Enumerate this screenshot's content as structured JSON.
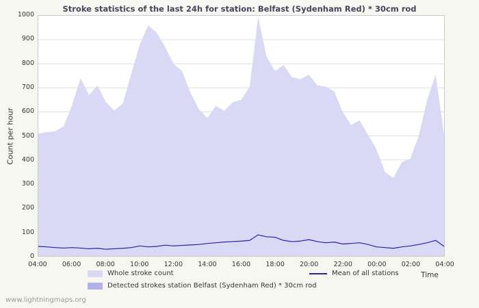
{
  "footer": {
    "watermark": "www.lightningmaps.org"
  },
  "chart_data": {
    "type": "area",
    "title": "Stroke statistics of the last 24h for station: Belfast (Sydenham Red) * 30cm rod",
    "xlabel": "Time",
    "ylabel": "Count per hour",
    "ylim": [
      0,
      1000
    ],
    "yticks": [
      0,
      100,
      200,
      300,
      400,
      500,
      600,
      700,
      800,
      900,
      1000
    ],
    "xticks": [
      "04:00",
      "06:00",
      "08:00",
      "10:00",
      "12:00",
      "14:00",
      "16:00",
      "18:00",
      "20:00",
      "22:00",
      "00:00",
      "02:00",
      "04:00"
    ],
    "x_start": "04:00",
    "x_interval_minutes": 30,
    "grid": "horizontal",
    "legend_position": "bottom",
    "colors": {
      "whole": "#d9d9f6",
      "detected": "#b2b2ea",
      "mean": "#2222aa",
      "grid": "#dddddd"
    },
    "series": [
      {
        "name": "Whole stroke count",
        "slug": "whole-stroke-count",
        "kind": "area",
        "color": "#d9d9f6",
        "values": [
          510,
          515,
          520,
          540,
          630,
          740,
          670,
          710,
          640,
          605,
          635,
          760,
          880,
          960,
          930,
          870,
          800,
          770,
          680,
          610,
          575,
          625,
          605,
          640,
          650,
          705,
          995,
          830,
          770,
          795,
          745,
          735,
          755,
          710,
          705,
          685,
          600,
          545,
          565,
          505,
          445,
          350,
          325,
          390,
          405,
          500,
          650,
          755,
          505
        ]
      },
      {
        "name": "Detected strokes station Belfast (Sydenham Red) * 30cm rod",
        "slug": "detected-strokes",
        "kind": "area",
        "color": "#b2b2ea",
        "values": [
          0,
          0,
          0,
          0,
          0,
          0,
          0,
          0,
          0,
          0,
          0,
          0,
          0,
          0,
          0,
          0,
          0,
          0,
          0,
          0,
          0,
          0,
          0,
          0,
          0,
          0,
          0,
          0,
          0,
          0,
          0,
          0,
          0,
          0,
          0,
          0,
          0,
          0,
          0,
          0,
          0,
          0,
          0,
          0,
          0,
          0,
          0,
          0,
          0
        ]
      },
      {
        "name": "Mean of all stations",
        "slug": "mean-of-all-stations",
        "kind": "line",
        "color": "#2222aa",
        "values": [
          40,
          38,
          35,
          33,
          35,
          33,
          30,
          32,
          28,
          30,
          32,
          35,
          42,
          38,
          40,
          45,
          42,
          44,
          46,
          48,
          52,
          55,
          58,
          60,
          62,
          65,
          88,
          80,
          78,
          65,
          60,
          62,
          68,
          60,
          55,
          58,
          50,
          52,
          55,
          48,
          38,
          35,
          32,
          38,
          42,
          48,
          55,
          65,
          40
        ]
      }
    ]
  }
}
